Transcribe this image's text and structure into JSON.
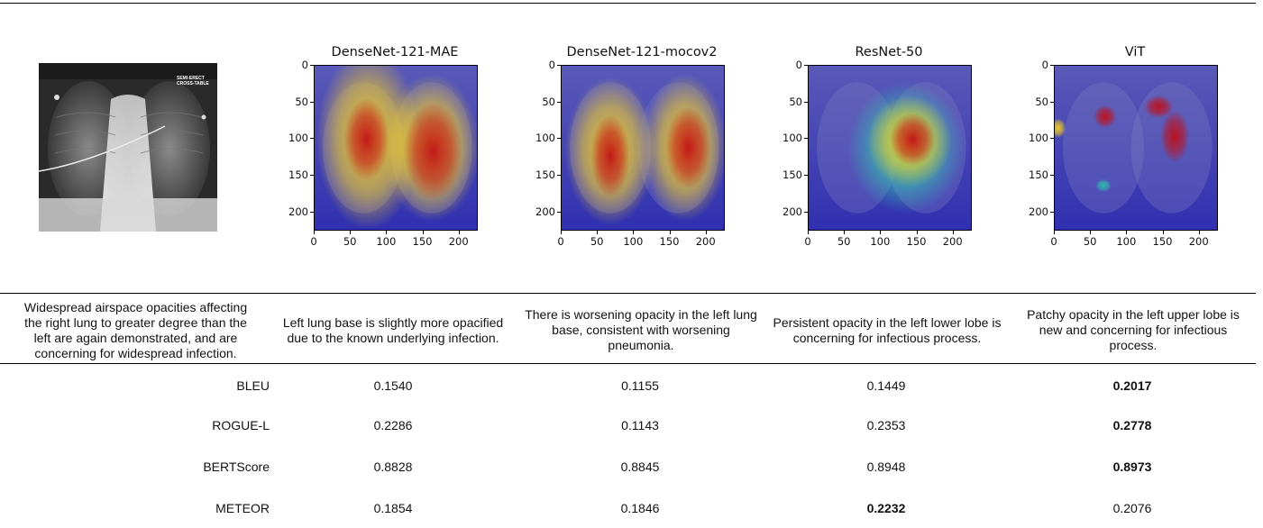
{
  "panels": [
    {
      "title": "DenseNet-121-MAE"
    },
    {
      "title": "DenseNet-121-mocov2"
    },
    {
      "title": "ResNet-50"
    },
    {
      "title": "ViT"
    }
  ],
  "axis_ticks": {
    "y": [
      "0",
      "50",
      "100",
      "150",
      "200"
    ],
    "x": [
      "0",
      "50",
      "100",
      "150",
      "200"
    ]
  },
  "xray_overlay_text": [
    "SEMI-ERECT",
    "CROSS-TABLE"
  ],
  "reports": {
    "ground_truth": "Widespread airspace opacities affecting the right lung to greater degree than the left are again demonstrated, and are concerning for widespread infection.",
    "models": [
      "Left lung base is slightly more opacified due to the known underlying infection.",
      "There is worsening opacity in the left lung base, consistent with worsening pneumonia.",
      "Persistent opacity in the left lower lobe is concerning for infectious process.",
      "Patchy opacity in the left upper lobe is new and concerning for infectious process."
    ]
  },
  "metrics": [
    {
      "name": "BLEU",
      "values": [
        "0.1540",
        "0.1155",
        "0.1449",
        "0.2017"
      ],
      "best": 3
    },
    {
      "name": "ROGUE-L",
      "values": [
        "0.2286",
        "0.1143",
        "0.2353",
        "0.2778"
      ],
      "best": 3
    },
    {
      "name": "BERTScore",
      "values": [
        "0.8828",
        "0.8845",
        "0.8948",
        "0.8973"
      ],
      "best": 3
    },
    {
      "name": "METEOR",
      "values": [
        "0.1854",
        "0.1846",
        "0.2232",
        "0.2076"
      ],
      "best": 2
    }
  ],
  "colors": {
    "heat_bg": "#3a3ab8",
    "hot": "#c0101a",
    "warm": "#f5d020",
    "cool": "#30c0b0"
  }
}
